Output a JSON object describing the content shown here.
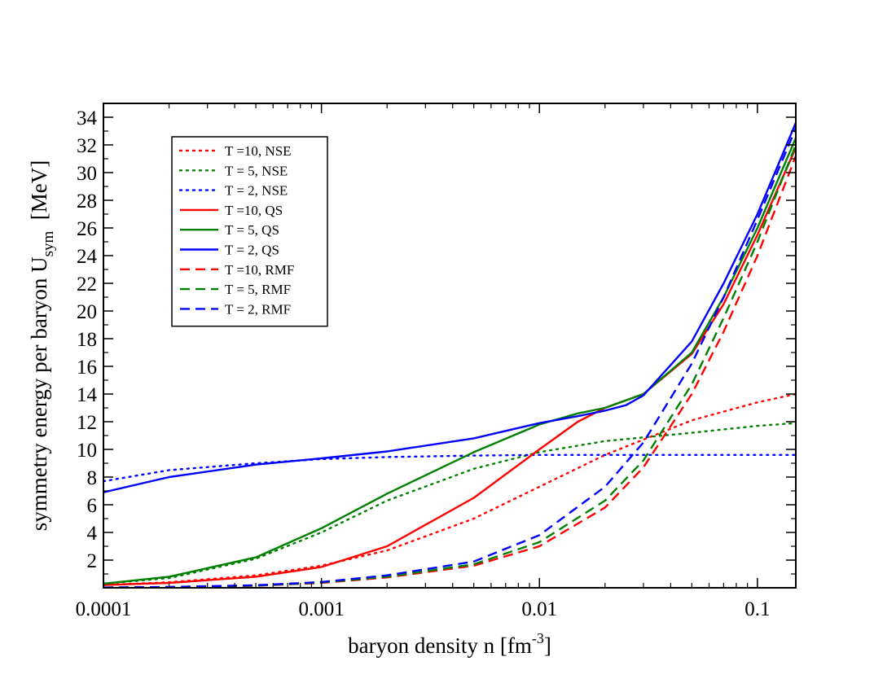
{
  "chart_data": {
    "type": "line",
    "xscale": "log",
    "xlim": [
      0.0001,
      0.15
    ],
    "ylim": [
      0,
      35
    ],
    "x_ticks": [
      {
        "value": 0.0001,
        "label": "0.0001"
      },
      {
        "value": 0.001,
        "label": "0.001"
      },
      {
        "value": 0.01,
        "label": "0.01"
      },
      {
        "value": 0.1,
        "label": "0.1"
      }
    ],
    "y_ticks": [
      {
        "value": 2,
        "label": "2"
      },
      {
        "value": 4,
        "label": "4"
      },
      {
        "value": 6,
        "label": "6"
      },
      {
        "value": 8,
        "label": "8"
      },
      {
        "value": 10,
        "label": "10"
      },
      {
        "value": 12,
        "label": "12"
      },
      {
        "value": 14,
        "label": "14"
      },
      {
        "value": 16,
        "label": "16"
      },
      {
        "value": 18,
        "label": "18"
      },
      {
        "value": 20,
        "label": "20"
      },
      {
        "value": 22,
        "label": "22"
      },
      {
        "value": 24,
        "label": "24"
      },
      {
        "value": 26,
        "label": "26"
      },
      {
        "value": 28,
        "label": "28"
      },
      {
        "value": 30,
        "label": "30"
      },
      {
        "value": 32,
        "label": "32"
      },
      {
        "value": 34,
        "label": "34"
      }
    ],
    "xlabel": {
      "main": "baryon density n [fm",
      "sup": "-3",
      "end": "]"
    },
    "ylabel": {
      "main": "symmetry energy per baryon U",
      "sub": "sym",
      "end": "  [MeV]"
    },
    "legend_position": "top-left",
    "series": [
      {
        "name": "T =10, NSE",
        "color": "#ff0000",
        "dash": "dotted",
        "x": [
          0.0001,
          0.0002,
          0.0005,
          0.001,
          0.002,
          0.005,
          0.01,
          0.02,
          0.05,
          0.1,
          0.15
        ],
        "y": [
          0.2,
          0.4,
          0.9,
          1.6,
          2.7,
          5.0,
          7.3,
          9.6,
          12.1,
          13.4,
          14.0
        ]
      },
      {
        "name": "T = 5, NSE",
        "color": "#008000",
        "dash": "dotted",
        "x": [
          0.0001,
          0.0002,
          0.0005,
          0.001,
          0.002,
          0.005,
          0.01,
          0.02,
          0.05,
          0.1,
          0.15
        ],
        "y": [
          0.3,
          0.7,
          2.1,
          4.0,
          6.3,
          8.6,
          9.8,
          10.6,
          11.2,
          11.7,
          11.9
        ]
      },
      {
        "name": "T = 2, NSE",
        "color": "#0000ff",
        "dash": "dotted",
        "x": [
          0.0001,
          0.0002,
          0.0005,
          0.001,
          0.002,
          0.005,
          0.01,
          0.02,
          0.05,
          0.1,
          0.15
        ],
        "y": [
          7.7,
          8.5,
          9.0,
          9.3,
          9.45,
          9.55,
          9.6,
          9.6,
          9.6,
          9.6,
          9.6
        ]
      },
      {
        "name": "T =10, QS",
        "color": "#ff0000",
        "dash": "solid",
        "x": [
          0.0001,
          0.0002,
          0.0005,
          0.001,
          0.002,
          0.005,
          0.01,
          0.015,
          0.02,
          0.03,
          0.05,
          0.07,
          0.1,
          0.15
        ],
        "y": [
          0.2,
          0.35,
          0.8,
          1.5,
          3.0,
          6.5,
          10.0,
          12.0,
          13.0,
          14.0,
          16.9,
          20.5,
          25.5,
          31.8
        ]
      },
      {
        "name": "T = 5, QS",
        "color": "#008000",
        "dash": "solid",
        "x": [
          0.0001,
          0.0002,
          0.0005,
          0.001,
          0.002,
          0.005,
          0.01,
          0.015,
          0.02,
          0.03,
          0.05,
          0.07,
          0.1,
          0.15
        ],
        "y": [
          0.3,
          0.8,
          2.2,
          4.3,
          6.8,
          9.8,
          11.8,
          12.6,
          13.0,
          14.0,
          17.0,
          21.0,
          26.0,
          32.5
        ]
      },
      {
        "name": "T = 2, QS",
        "color": "#0000ff",
        "dash": "solid",
        "x": [
          0.0001,
          0.0002,
          0.0005,
          0.001,
          0.002,
          0.005,
          0.01,
          0.015,
          0.02,
          0.025,
          0.03,
          0.05,
          0.07,
          0.1,
          0.15
        ],
        "y": [
          6.9,
          8.0,
          8.9,
          9.35,
          9.85,
          10.8,
          11.9,
          12.4,
          12.8,
          13.2,
          13.9,
          17.8,
          22.0,
          27.0,
          33.6
        ]
      },
      {
        "name": "T =10, RMF",
        "color": "#ff0000",
        "dash": "dashed",
        "x": [
          0.0001,
          0.0002,
          0.0005,
          0.001,
          0.002,
          0.005,
          0.01,
          0.02,
          0.03,
          0.05,
          0.07,
          0.1,
          0.15
        ],
        "y": [
          0.02,
          0.05,
          0.15,
          0.35,
          0.75,
          1.6,
          3.0,
          5.8,
          8.7,
          14.0,
          18.5,
          24.0,
          31.2
        ]
      },
      {
        "name": "T = 5, RMF",
        "color": "#008000",
        "dash": "dashed",
        "x": [
          0.0001,
          0.0002,
          0.0005,
          0.001,
          0.002,
          0.005,
          0.01,
          0.02,
          0.03,
          0.05,
          0.07,
          0.1,
          0.15
        ],
        "y": [
          0.02,
          0.05,
          0.16,
          0.38,
          0.8,
          1.7,
          3.3,
          6.3,
          9.2,
          14.7,
          19.5,
          25.0,
          32.0
        ]
      },
      {
        "name": "T = 2, RMF",
        "color": "#0000ff",
        "dash": "dashed",
        "x": [
          0.0001,
          0.0002,
          0.0005,
          0.001,
          0.002,
          0.005,
          0.01,
          0.02,
          0.03,
          0.05,
          0.07,
          0.1,
          0.15
        ],
        "y": [
          0.02,
          0.06,
          0.18,
          0.42,
          0.9,
          1.9,
          3.8,
          7.3,
          10.5,
          16.2,
          21.0,
          26.6,
          33.2
        ]
      }
    ]
  }
}
